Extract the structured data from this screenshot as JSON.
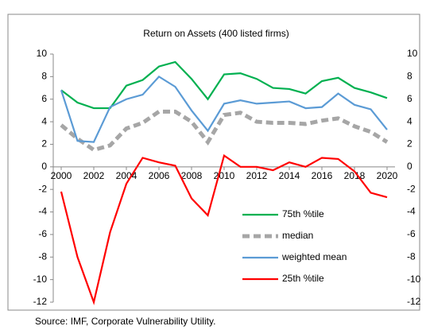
{
  "chart_data": {
    "type": "line",
    "title": "Return on Assets (400 listed firms)",
    "x": [
      2000,
      2001,
      2002,
      2003,
      2004,
      2005,
      2006,
      2007,
      2008,
      2009,
      2010,
      2011,
      2012,
      2013,
      2014,
      2015,
      2016,
      2017,
      2018,
      2019,
      2020
    ],
    "xlim": [
      2000,
      2020
    ],
    "xticks": [
      2000,
      2002,
      2004,
      2006,
      2008,
      2010,
      2012,
      2014,
      2016,
      2018,
      2020
    ],
    "ylim": [
      -12,
      10
    ],
    "yticks": [
      10,
      8,
      6,
      4,
      2,
      0,
      -2,
      -4,
      -6,
      -8,
      -10,
      -12
    ],
    "y2lim": [
      -12,
      10
    ],
    "y2ticks": [
      10,
      8,
      6,
      4,
      2,
      0,
      -2,
      -4,
      -6,
      -8,
      -10,
      -12
    ],
    "legend": "lower right",
    "series": [
      {
        "name": "75th %tile",
        "color": "#00b050",
        "dash": false,
        "values": [
          6.8,
          5.7,
          5.2,
          5.2,
          7.2,
          7.7,
          8.9,
          9.3,
          7.8,
          6.0,
          8.2,
          8.3,
          7.8,
          7.0,
          6.9,
          6.5,
          7.6,
          7.9,
          7.0,
          6.6,
          6.1
        ]
      },
      {
        "name": "median",
        "color": "#a6a6a6",
        "dash": true,
        "values": [
          3.7,
          2.5,
          1.5,
          1.9,
          3.4,
          3.9,
          4.9,
          4.9,
          4.0,
          2.2,
          4.6,
          4.8,
          4.0,
          3.9,
          3.9,
          3.8,
          4.1,
          4.3,
          3.6,
          3.1,
          2.2
        ]
      },
      {
        "name": "weighted mean",
        "color": "#5b9bd5",
        "dash": false,
        "values": [
          6.8,
          2.3,
          2.2,
          5.3,
          6.0,
          6.4,
          8.0,
          7.1,
          5.0,
          3.2,
          5.6,
          5.9,
          5.6,
          5.7,
          5.8,
          5.2,
          5.3,
          6.5,
          5.5,
          5.1,
          3.3
        ]
      },
      {
        "name": "25th %tile",
        "color": "#ff0000",
        "dash": false,
        "values": [
          -2.2,
          -8.0,
          -12.0,
          -5.8,
          -1.5,
          0.8,
          0.4,
          0.1,
          -2.8,
          -4.3,
          1.0,
          0.0,
          0.0,
          -0.3,
          0.4,
          0.0,
          0.8,
          0.7,
          -0.4,
          -2.3,
          -2.7
        ]
      }
    ],
    "source": "Source: IMF, Corporate Vulnerability Utility."
  }
}
